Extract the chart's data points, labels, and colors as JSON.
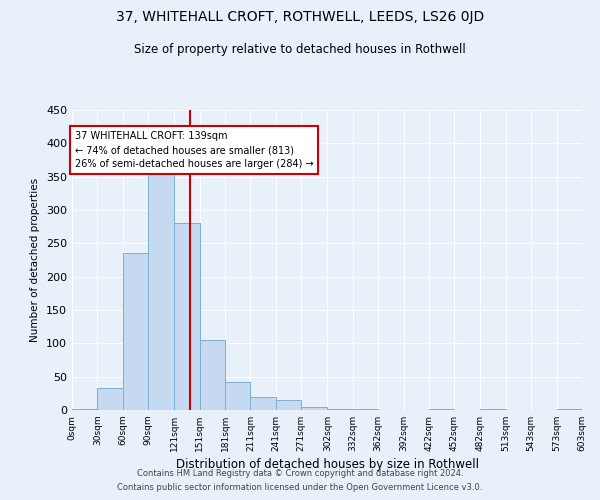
{
  "title": "37, WHITEHALL CROFT, ROTHWELL, LEEDS, LS26 0JD",
  "subtitle": "Size of property relative to detached houses in Rothwell",
  "xlabel": "Distribution of detached houses by size in Rothwell",
  "ylabel": "Number of detached properties",
  "bar_color": "#c5d9f0",
  "bar_edge_color": "#7bafd4",
  "background_color": "#e8f0fa",
  "grid_color": "white",
  "vline_x": 139,
  "vline_color": "#cc0000",
  "annotation_text": "37 WHITEHALL CROFT: 139sqm\n← 74% of detached houses are smaller (813)\n26% of semi-detached houses are larger (284) →",
  "annotation_box_color": "white",
  "annotation_box_edge": "#cc0000",
  "footer_line1": "Contains HM Land Registry data © Crown copyright and database right 2024.",
  "footer_line2": "Contains public sector information licensed under the Open Government Licence v3.0.",
  "bin_edges": [
    0,
    30,
    60,
    90,
    121,
    151,
    181,
    211,
    241,
    271,
    302,
    332,
    362,
    392,
    422,
    452,
    482,
    513,
    543,
    573,
    603
  ],
  "bin_labels": [
    "0sqm",
    "30sqm",
    "60sqm",
    "90sqm",
    "121sqm",
    "151sqm",
    "181sqm",
    "211sqm",
    "241sqm",
    "271sqm",
    "302sqm",
    "332sqm",
    "362sqm",
    "392sqm",
    "422sqm",
    "452sqm",
    "482sqm",
    "513sqm",
    "543sqm",
    "573sqm",
    "603sqm"
  ],
  "bar_heights": [
    2,
    33,
    235,
    362,
    280,
    105,
    42,
    20,
    15,
    5,
    2,
    1,
    0,
    0,
    2,
    0,
    2,
    0,
    0,
    1
  ],
  "ylim": [
    0,
    450
  ],
  "yticks": [
    0,
    50,
    100,
    150,
    200,
    250,
    300,
    350,
    400,
    450
  ]
}
